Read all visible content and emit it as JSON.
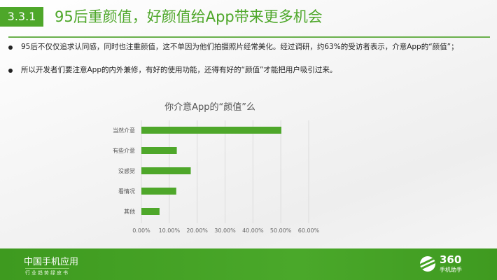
{
  "header": {
    "section": "3.3.1",
    "title": "95后重颜值，好颜值给App带来更多机会"
  },
  "bullets": [
    "95后不仅仅追求认同感，同时也注重颜值，这不单因为他们拍摄照片经常美化。经过调研，约63%的受访者表示，介意App的“颜值”；",
    "所以开发者们要注意App的内外兼修，有好的使用功能，还得有好的“颜值”才能把用户吸引过来。"
  ],
  "chart_data": {
    "type": "bar",
    "orientation": "horizontal",
    "title": "你介意App的“颜值”么",
    "categories": [
      "当然介意",
      "有些介意",
      "没感觉",
      "看情况",
      "其他"
    ],
    "values": [
      50.2,
      12.7,
      17.7,
      12.5,
      6.5
    ],
    "xlim": [
      0,
      60
    ],
    "xticks": [
      "0.00%",
      "10.00%",
      "20.00%",
      "30.00%",
      "40.00%",
      "50.00%",
      "60.00%"
    ],
    "grid": "vertical",
    "bar_color": "#4ea72a"
  },
  "footer": {
    "brand": "中国手机应用",
    "subtitle": "行业趋势绿皮书",
    "logo_number": "360",
    "logo_text": "手机助手"
  },
  "colors": {
    "accent": "#4ea72a"
  }
}
